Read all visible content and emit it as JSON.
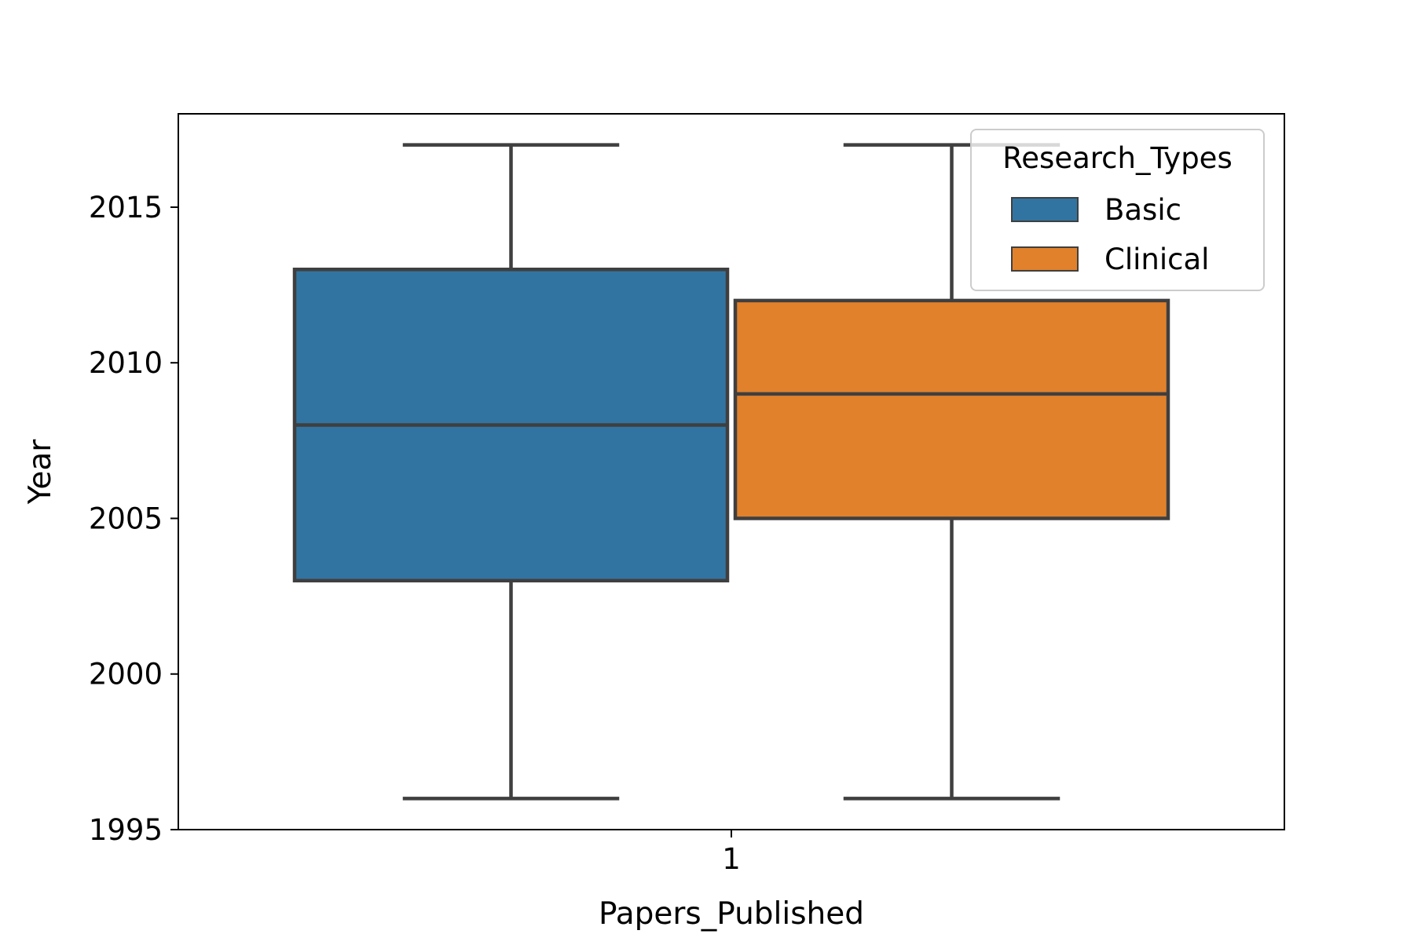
{
  "chart_data": {
    "type": "box",
    "title": "",
    "xlabel": "Papers_Published",
    "ylabel": "Year",
    "categories": [
      "1"
    ],
    "ylim": [
      1995,
      2018
    ],
    "yticks": [
      1995,
      2000,
      2005,
      2010,
      2015
    ],
    "grid": false,
    "legend": {
      "title": "Research_Types",
      "placement": "top-right"
    },
    "series": [
      {
        "name": "Basic",
        "color": "#3274a1",
        "whisker_low": 1996,
        "q1": 2003,
        "median": 2008,
        "q3": 2013,
        "whisker_high": 2017
      },
      {
        "name": "Clinical",
        "color": "#e1812c",
        "whisker_low": 1996,
        "q1": 2005,
        "median": 2009,
        "q3": 2012,
        "whisker_high": 2017
      }
    ],
    "line_color": "#3f3f3f"
  }
}
